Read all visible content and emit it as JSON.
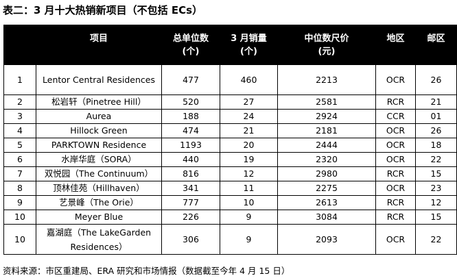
{
  "title": "表二：3 月十大热销新项目（不包括 ECs）",
  "headers": {
    "rank": "",
    "project": "项目",
    "total_units_l1": "总单位数",
    "total_units_l2": "(个)",
    "march_sales_l1": "3 月销量",
    "march_sales_l2": "(个)",
    "median_psf_l1": "中位数尺价",
    "median_psf_l2": "(元)",
    "region": "地区",
    "district": "邮区"
  },
  "rows": [
    {
      "rank": "1",
      "project": "Lentor Central Residences",
      "units": "477",
      "sales": "460",
      "psf": "2213",
      "region": "OCR",
      "district": "26"
    },
    {
      "rank": "2",
      "project": "松岩轩（Pinetree Hill）",
      "units": "520",
      "sales": "27",
      "psf": "2581",
      "region": "RCR",
      "district": "21"
    },
    {
      "rank": "3",
      "project": "Aurea",
      "units": "188",
      "sales": "24",
      "psf": "2924",
      "region": "CCR",
      "district": "01"
    },
    {
      "rank": "4",
      "project": "Hillock Green",
      "units": "474",
      "sales": "21",
      "psf": "2181",
      "region": "OCR",
      "district": "26"
    },
    {
      "rank": "5",
      "project": "PARKTOWN Residence",
      "units": "1193",
      "sales": "20",
      "psf": "2444",
      "region": "OCR",
      "district": "18"
    },
    {
      "rank": "6",
      "project": "水岸华庭（SORA）",
      "units": "440",
      "sales": "19",
      "psf": "2320",
      "region": "OCR",
      "district": "22"
    },
    {
      "rank": "7",
      "project": "双悦园（The Continuum）",
      "units": "816",
      "sales": "12",
      "psf": "2980",
      "region": "RCR",
      "district": "15"
    },
    {
      "rank": "8",
      "project": "顶林佳苑（Hillhaven）",
      "units": "341",
      "sales": "11",
      "psf": "2275",
      "region": "OCR",
      "district": "23"
    },
    {
      "rank": "9",
      "project": "艺景峰（The Orie）",
      "units": "777",
      "sales": "10",
      "psf": "2613",
      "region": "RCR",
      "district": "12"
    },
    {
      "rank": "10",
      "project": "Meyer Blue",
      "units": "226",
      "sales": "9",
      "psf": "3084",
      "region": "RCR",
      "district": "15"
    },
    {
      "rank": "10",
      "project": "嘉湖庭（The LakeGarden Residences）",
      "units": "306",
      "sales": "9",
      "psf": "2093",
      "region": "OCR",
      "district": "22"
    }
  ],
  "footer": "资料来源：市区重建局、ERA 研究和市场情报（数据截至今年 4 月 15 日）"
}
